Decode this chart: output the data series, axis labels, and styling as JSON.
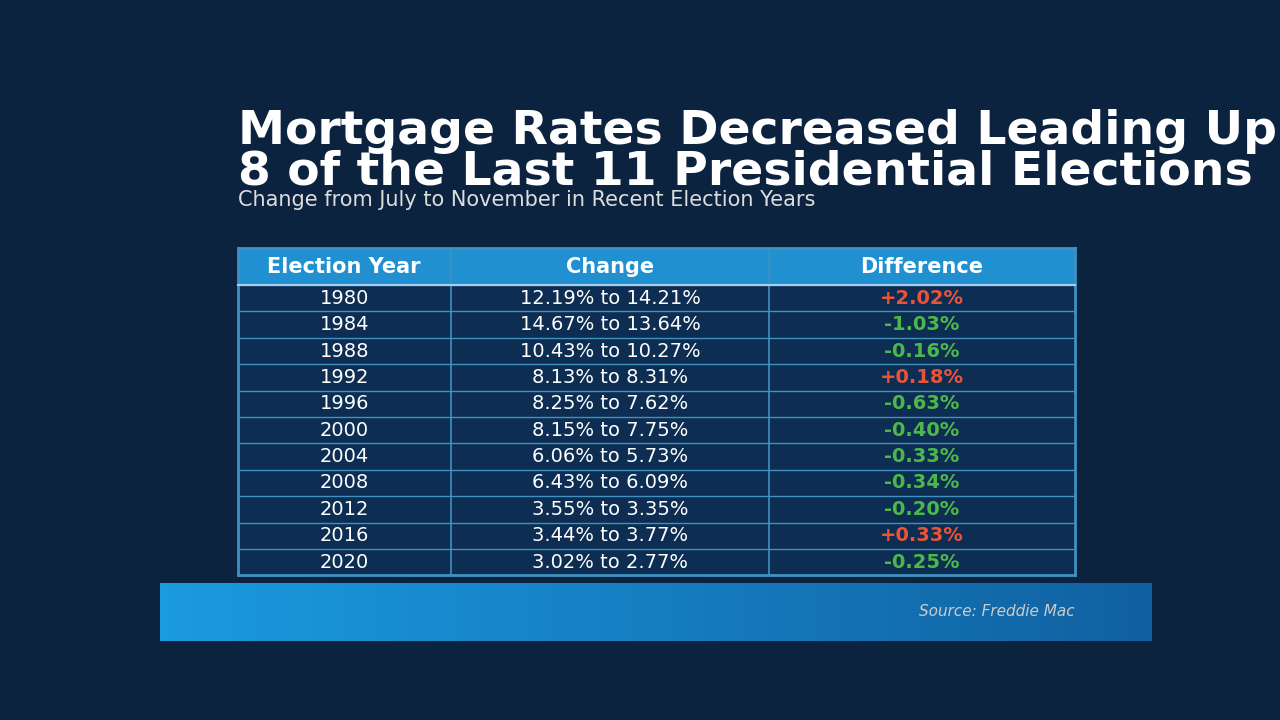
{
  "title_line1": "Mortgage Rates Decreased Leading Up to",
  "title_line2": "8 of the Last 11 Presidential Elections",
  "subtitle": "Change from July to November in Recent Election Years",
  "source": "Source: Freddie Mac",
  "headers": [
    "Election Year",
    "Change",
    "Difference"
  ],
  "rows": [
    [
      "1980",
      "12.19% to 14.21%",
      "+2.02%"
    ],
    [
      "1984",
      "14.67% to 13.64%",
      "-1.03%"
    ],
    [
      "1988",
      "10.43% to 10.27%",
      "-0.16%"
    ],
    [
      "1992",
      "8.13% to 8.31%",
      "+0.18%"
    ],
    [
      "1996",
      "8.25% to 7.62%",
      "-0.63%"
    ],
    [
      "2000",
      "8.15% to 7.75%",
      "-0.40%"
    ],
    [
      "2004",
      "6.06% to 5.73%",
      "-0.33%"
    ],
    [
      "2008",
      "6.43% to 6.09%",
      "-0.34%"
    ],
    [
      "2012",
      "3.55% to 3.35%",
      "-0.20%"
    ],
    [
      "2016",
      "3.44% to 3.77%",
      "+0.33%"
    ],
    [
      "2020",
      "3.02% to 2.77%",
      "-0.25%"
    ]
  ],
  "diff_colors": [
    "#e8533a",
    "#4db84a",
    "#4db84a",
    "#e8533a",
    "#4db84a",
    "#4db84a",
    "#4db84a",
    "#4db84a",
    "#4db84a",
    "#e8533a",
    "#4db84a"
  ],
  "bg_color": "#0c2340",
  "header_bg": "#2090d0",
  "header_text": "#ffffff",
  "row_text_color": "#ffffff",
  "table_border_color": "#4090c0",
  "row_bg": "#0d2e52",
  "title_color": "#ffffff",
  "subtitle_color": "#dddddd",
  "source_color": "#cccccc",
  "bottom_bar_color_left": "#1a9ae0",
  "bottom_bar_color_right": "#1060a0"
}
